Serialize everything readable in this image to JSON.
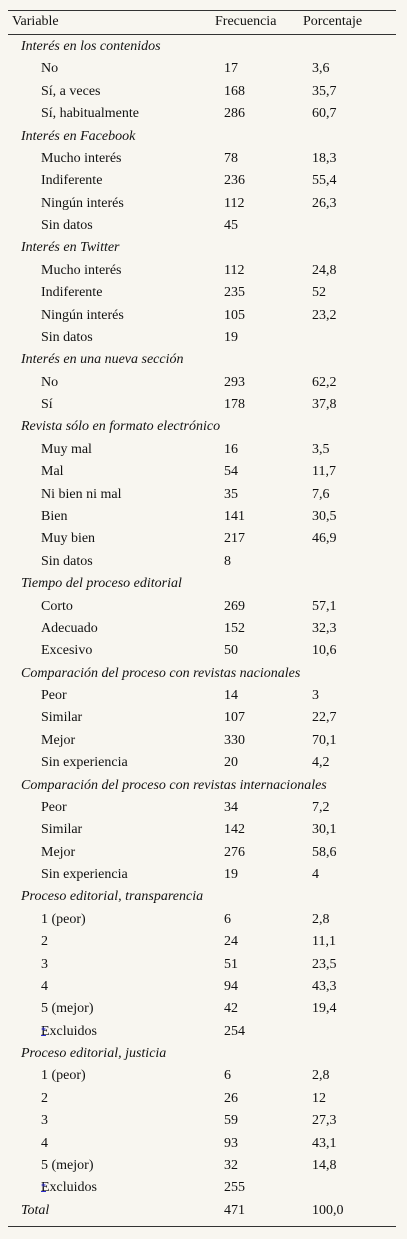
{
  "table": {
    "header": [
      "Variable",
      "Frecuencia",
      "Porcentaje"
    ],
    "groups": [
      {
        "title": "Interés en los contenidos",
        "rows": [
          {
            "label": "No",
            "freq": 17,
            "pct": "3,6"
          },
          {
            "label": "Sí, a veces",
            "freq": 168,
            "pct": "35,7"
          },
          {
            "label": "Sí, habitualmente",
            "freq": 286,
            "pct": "60,7"
          }
        ]
      },
      {
        "title": "Interés en Facebook",
        "rows": [
          {
            "label": "Mucho interés",
            "freq": 78,
            "pct": "18,3"
          },
          {
            "label": "Indiferente",
            "freq": 236,
            "pct": "55,4"
          },
          {
            "label": "Ningún interés",
            "freq": 112,
            "pct": "26,3"
          },
          {
            "label": "Sin datos",
            "freq": 45
          }
        ]
      },
      {
        "title": "Interés en Twitter",
        "rows": [
          {
            "label": "Mucho interés",
            "freq": 112,
            "pct": "24,8"
          },
          {
            "label": "Indiferente",
            "freq": 235,
            "pct": "52"
          },
          {
            "label": "Ningún interés",
            "freq": 105,
            "pct": "23,2"
          },
          {
            "label": "Sin datos",
            "freq": 19
          }
        ]
      },
      {
        "title": "Interés en una nueva sección",
        "rows": [
          {
            "label": "No",
            "freq": 293,
            "pct": "62,2"
          },
          {
            "label": "Sí",
            "freq": 178,
            "pct": "37,8"
          }
        ]
      },
      {
        "title": "Revista sólo en formato electrónico",
        "rows": [
          {
            "label": "Muy mal",
            "freq": 16,
            "pct": "3,5"
          },
          {
            "label": "Mal",
            "freq": 54,
            "pct": "11,7"
          },
          {
            "label": "Ni bien ni mal",
            "freq": 35,
            "pct": "7,6"
          },
          {
            "label": "Bien",
            "freq": 141,
            "pct": "30,5"
          },
          {
            "label": "Muy bien",
            "freq": 217,
            "pct": "46,9"
          },
          {
            "label": "Sin datos",
            "freq": 8
          }
        ]
      },
      {
        "title": "Tiempo del proceso editorial",
        "rows": [
          {
            "label": "Corto",
            "freq": 269,
            "pct": "57,1"
          },
          {
            "label": "Adecuado",
            "freq": 152,
            "pct": "32,3"
          },
          {
            "label": "Excesivo",
            "freq": 50,
            "pct": "10,6"
          }
        ]
      },
      {
        "title": "Comparación del proceso con revistas nacionales",
        "rows": [
          {
            "label": "Peor",
            "freq": 14,
            "pct": "3"
          },
          {
            "label": "Similar",
            "freq": 107,
            "pct": "22,7"
          },
          {
            "label": "Mejor",
            "freq": 330,
            "pct": "70,1"
          },
          {
            "label": "Sin experiencia",
            "freq": 20,
            "pct": "4,2"
          }
        ]
      },
      {
        "title": "Comparación del proceso con revistas internacionales",
        "rows": [
          {
            "label": "Peor",
            "freq": 34,
            "pct": "7,2"
          },
          {
            "label": "Similar",
            "freq": 142,
            "pct": "30,1"
          },
          {
            "label": "Mejor",
            "freq": 276,
            "pct": "58,6"
          },
          {
            "label": "Sin experiencia",
            "freq": 19,
            "pct": "4"
          }
        ]
      },
      {
        "title": "Proceso editorial, transparencia",
        "rows": [
          {
            "label": "1 (peor)",
            "freq": 6,
            "pct": "2,8"
          },
          {
            "label": "2",
            "freq": 24,
            "pct": "11,1"
          },
          {
            "label": "3",
            "freq": 51,
            "pct": "23,5"
          },
          {
            "label": "4",
            "freq": 94,
            "pct": "43,3"
          },
          {
            "label": "5 (mejor)",
            "freq": 42,
            "pct": "19,4"
          },
          {
            "label": "Excluidos",
            "note": "*",
            "freq": 254
          }
        ]
      },
      {
        "title": "Proceso editorial, justicia",
        "rows": [
          {
            "label": "1 (peor)",
            "freq": 6,
            "pct": "2,8"
          },
          {
            "label": "2",
            "freq": 26,
            "pct": "12"
          },
          {
            "label": "3",
            "freq": 59,
            "pct": "27,3"
          },
          {
            "label": "4",
            "freq": 93,
            "pct": "43,1"
          },
          {
            "label": "5 (mejor)",
            "freq": 32,
            "pct": "14,8"
          },
          {
            "label": "Excluidos",
            "note": "*",
            "freq": 255
          }
        ]
      }
    ],
    "total": {
      "label": "Total",
      "freq": 471,
      "pct": "100,0"
    }
  }
}
